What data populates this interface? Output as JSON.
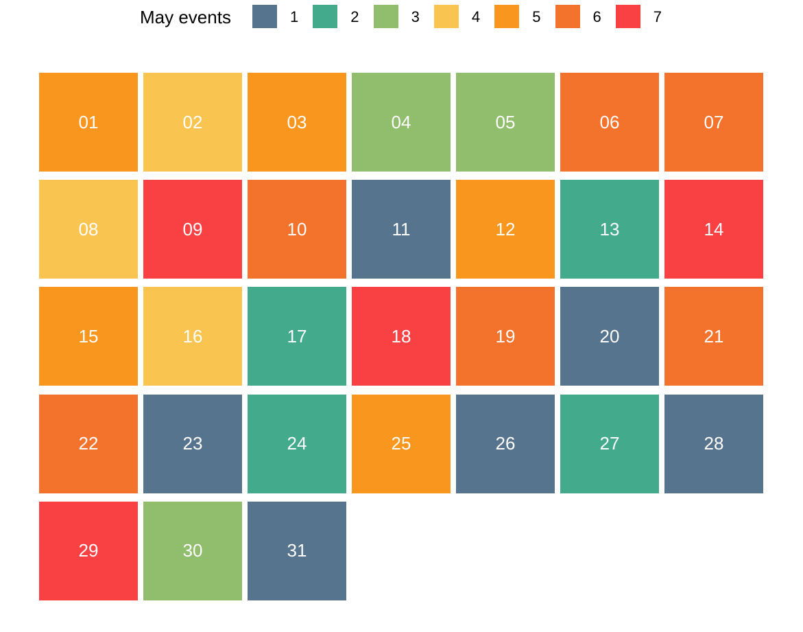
{
  "chart_data": {
    "type": "heatmap",
    "title": "",
    "legend": {
      "title": "May events",
      "placement": "top",
      "levels": [
        {
          "label": "1",
          "color": "#57748f"
        },
        {
          "label": "2",
          "color": "#43aa8b"
        },
        {
          "label": "3",
          "color": "#90be6d"
        },
        {
          "label": "4",
          "color": "#f9c550"
        },
        {
          "label": "5",
          "color": "#f8961e"
        },
        {
          "label": "6",
          "color": "#f3722c"
        },
        {
          "label": "7",
          "color": "#f94144"
        }
      ]
    },
    "weeks": 5,
    "days_per_week": 7,
    "days": [
      {
        "day": "01",
        "events": 5
      },
      {
        "day": "02",
        "events": 4
      },
      {
        "day": "03",
        "events": 5
      },
      {
        "day": "04",
        "events": 3
      },
      {
        "day": "05",
        "events": 3
      },
      {
        "day": "06",
        "events": 6
      },
      {
        "day": "07",
        "events": 6
      },
      {
        "day": "08",
        "events": 4
      },
      {
        "day": "09",
        "events": 7
      },
      {
        "day": "10",
        "events": 6
      },
      {
        "day": "11",
        "events": 1
      },
      {
        "day": "12",
        "events": 5
      },
      {
        "day": "13",
        "events": 2
      },
      {
        "day": "14",
        "events": 7
      },
      {
        "day": "15",
        "events": 5
      },
      {
        "day": "16",
        "events": 4
      },
      {
        "day": "17",
        "events": 2
      },
      {
        "day": "18",
        "events": 7
      },
      {
        "day": "19",
        "events": 6
      },
      {
        "day": "20",
        "events": 1
      },
      {
        "day": "21",
        "events": 6
      },
      {
        "day": "22",
        "events": 6
      },
      {
        "day": "23",
        "events": 1
      },
      {
        "day": "24",
        "events": 2
      },
      {
        "day": "25",
        "events": 5
      },
      {
        "day": "26",
        "events": 1
      },
      {
        "day": "27",
        "events": 2
      },
      {
        "day": "28",
        "events": 1
      },
      {
        "day": "29",
        "events": 7
      },
      {
        "day": "30",
        "events": 3
      },
      {
        "day": "31",
        "events": 1
      }
    ]
  }
}
